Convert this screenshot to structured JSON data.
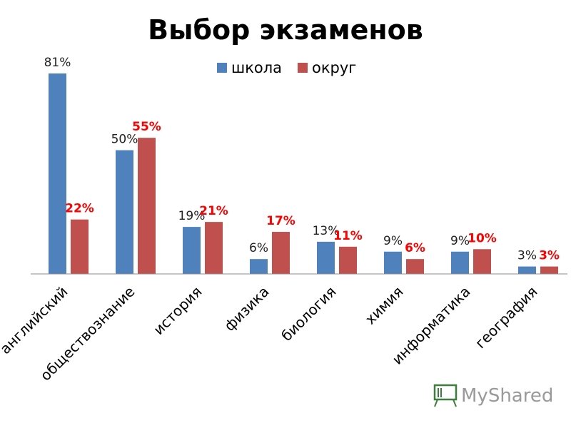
{
  "chart_data": {
    "type": "bar",
    "title": "Выбор экзаменов",
    "categories": [
      "английский",
      "обществознание",
      "история",
      "физика",
      "биология",
      "химия",
      "информатика",
      "география"
    ],
    "series": [
      {
        "name": "школа",
        "values": [
          81,
          50,
          19,
          6,
          13,
          9,
          9,
          3
        ],
        "labels": [
          "81%",
          "50%",
          "19%",
          "6%",
          "13%",
          "9%",
          "9%",
          "3%"
        ],
        "color": "#4f81bd"
      },
      {
        "name": "округ",
        "values": [
          22,
          55,
          21,
          17,
          11,
          6,
          10,
          3
        ],
        "labels": [
          "22%",
          "55%",
          "21%",
          "17%",
          "11%",
          "6%",
          "10%",
          "3%"
        ],
        "color": "#c0504d"
      }
    ],
    "label_colors": [
      "#222222",
      "#ff0000"
    ],
    "ylim": [
      0,
      81
    ],
    "grid": false,
    "legend_position": "top-right"
  },
  "watermark": {
    "text": "MyShared",
    "icon": "presentation-board-icon"
  }
}
